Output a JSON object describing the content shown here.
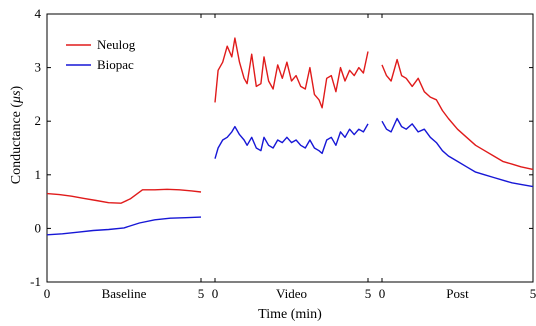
{
  "chart_data": {
    "type": "line",
    "title": "",
    "xlabel": "Time (min)",
    "ylabel_prefix": "Conductance (",
    "ylabel_symbol": "μs",
    "ylabel_suffix": ")",
    "ylim": [
      -1,
      4
    ],
    "yticks": [
      "-1",
      "0",
      "1",
      "2",
      "3",
      "4"
    ],
    "legend_position": "top-left",
    "grid": false,
    "colors": {
      "Neulog": "#e01b1b",
      "Biopac": "#1717d6"
    },
    "segments": [
      {
        "label": "Baseline",
        "xlim": [
          0,
          5
        ],
        "tick_labels": [
          "0",
          "5"
        ],
        "series": [
          {
            "name": "Neulog",
            "x": [
              0,
              0.4,
              0.8,
              1.2,
              1.6,
              2.0,
              2.4,
              2.7,
              3.1,
              3.5,
              3.9,
              4.3,
              4.7,
              5.0
            ],
            "y": [
              0.65,
              0.63,
              0.6,
              0.56,
              0.52,
              0.48,
              0.47,
              0.55,
              0.72,
              0.72,
              0.73,
              0.72,
              0.7,
              0.68
            ]
          },
          {
            "name": "Biopac",
            "x": [
              0,
              0.5,
              1.0,
              1.5,
              2.0,
              2.5,
              3.0,
              3.5,
              4.0,
              4.5,
              5.0
            ],
            "y": [
              -0.12,
              -0.1,
              -0.07,
              -0.04,
              -0.02,
              0.01,
              0.1,
              0.16,
              0.19,
              0.2,
              0.21
            ]
          }
        ]
      },
      {
        "label": "Video",
        "xlim": [
          0,
          5
        ],
        "tick_labels": [
          "0",
          "5"
        ],
        "series": [
          {
            "name": "Neulog",
            "x": [
              0,
              0.1,
              0.25,
              0.4,
              0.55,
              0.65,
              0.8,
              0.95,
              1.05,
              1.2,
              1.35,
              1.5,
              1.6,
              1.75,
              1.9,
              2.05,
              2.2,
              2.35,
              2.5,
              2.65,
              2.8,
              2.95,
              3.1,
              3.25,
              3.4,
              3.5,
              3.65,
              3.8,
              3.95,
              4.1,
              4.25,
              4.4,
              4.55,
              4.7,
              4.85,
              5.0
            ],
            "y": [
              2.35,
              2.95,
              3.1,
              3.4,
              3.2,
              3.55,
              3.1,
              2.8,
              2.7,
              3.25,
              2.65,
              2.7,
              3.2,
              2.75,
              2.6,
              3.05,
              2.8,
              3.1,
              2.75,
              2.85,
              2.65,
              2.6,
              3.0,
              2.5,
              2.4,
              2.25,
              2.8,
              2.85,
              2.55,
              3.0,
              2.75,
              2.95,
              2.85,
              3.0,
              2.9,
              3.3
            ]
          },
          {
            "name": "Biopac",
            "x": [
              0,
              0.1,
              0.25,
              0.4,
              0.55,
              0.65,
              0.8,
              0.95,
              1.05,
              1.2,
              1.35,
              1.5,
              1.6,
              1.75,
              1.9,
              2.05,
              2.2,
              2.35,
              2.5,
              2.65,
              2.8,
              2.95,
              3.1,
              3.25,
              3.4,
              3.5,
              3.65,
              3.8,
              3.95,
              4.1,
              4.25,
              4.4,
              4.55,
              4.7,
              4.85,
              5.0
            ],
            "y": [
              1.3,
              1.5,
              1.65,
              1.7,
              1.8,
              1.9,
              1.75,
              1.65,
              1.55,
              1.7,
              1.5,
              1.45,
              1.7,
              1.55,
              1.5,
              1.65,
              1.6,
              1.7,
              1.6,
              1.65,
              1.55,
              1.5,
              1.65,
              1.5,
              1.45,
              1.4,
              1.65,
              1.7,
              1.55,
              1.8,
              1.7,
              1.85,
              1.75,
              1.85,
              1.8,
              1.95
            ]
          }
        ]
      },
      {
        "label": "Post",
        "xlim": [
          0,
          5
        ],
        "tick_labels": [
          "0",
          "5"
        ],
        "series": [
          {
            "name": "Neulog",
            "x": [
              0,
              0.15,
              0.3,
              0.5,
              0.65,
              0.8,
              1.0,
              1.2,
              1.4,
              1.6,
              1.8,
              2.0,
              2.2,
              2.5,
              2.8,
              3.1,
              3.4,
              3.7,
              4.0,
              4.3,
              4.6,
              5.0
            ],
            "y": [
              3.05,
              2.85,
              2.75,
              3.15,
              2.85,
              2.8,
              2.65,
              2.8,
              2.55,
              2.45,
              2.4,
              2.2,
              2.05,
              1.85,
              1.7,
              1.55,
              1.45,
              1.35,
              1.25,
              1.2,
              1.15,
              1.1
            ]
          },
          {
            "name": "Biopac",
            "x": [
              0,
              0.15,
              0.3,
              0.5,
              0.65,
              0.8,
              1.0,
              1.2,
              1.4,
              1.6,
              1.8,
              2.0,
              2.2,
              2.5,
              2.8,
              3.1,
              3.4,
              3.7,
              4.0,
              4.3,
              4.6,
              5.0
            ],
            "y": [
              2.0,
              1.85,
              1.8,
              2.05,
              1.9,
              1.85,
              1.95,
              1.8,
              1.85,
              1.7,
              1.6,
              1.45,
              1.35,
              1.25,
              1.15,
              1.05,
              1.0,
              0.95,
              0.9,
              0.85,
              0.82,
              0.78
            ]
          }
        ]
      }
    ],
    "legend": [
      {
        "name": "Neulog"
      },
      {
        "name": "Biopac"
      }
    ]
  }
}
